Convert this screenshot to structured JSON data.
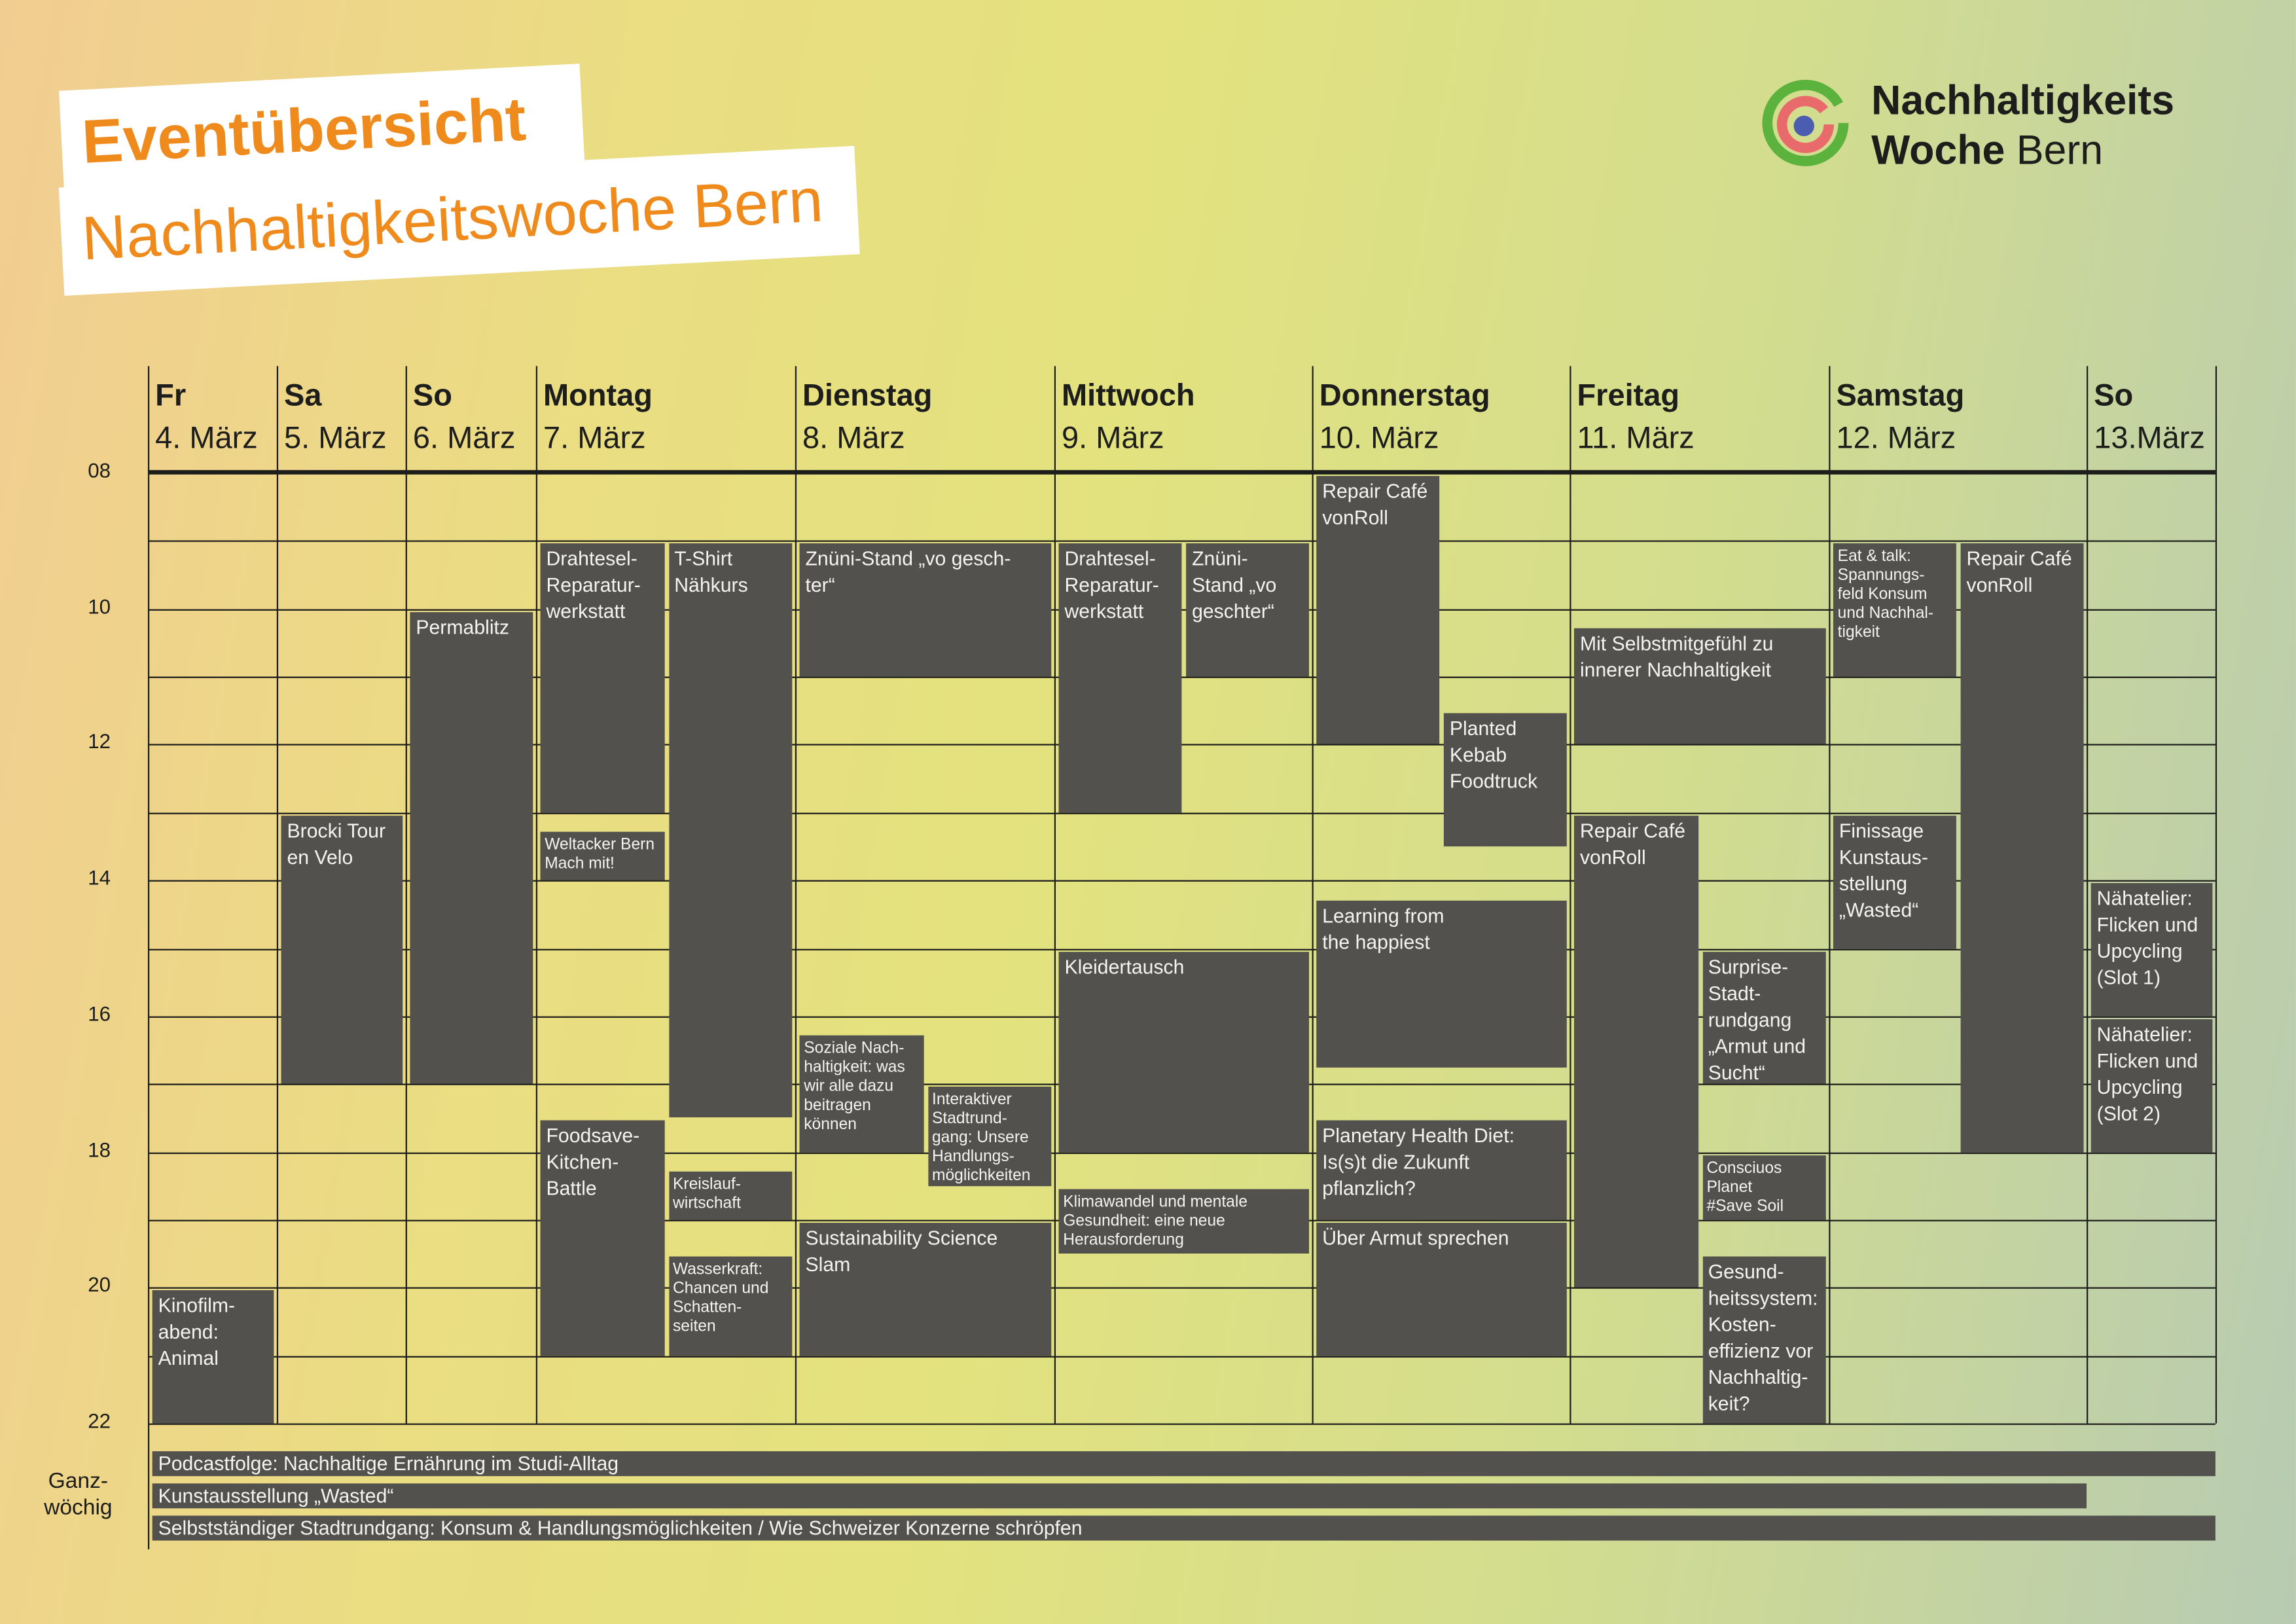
{
  "title": {
    "line1": "Eventübersicht",
    "line2": "Nachhaltigkeitswoche Bern"
  },
  "logo": {
    "bold1": "Nachhaltigkeits",
    "bold2": "Woche",
    "regular": "Bern"
  },
  "colors": {
    "accent": "#ef8a1c",
    "event_bg": "#52514d",
    "text": "#1d1d1b"
  },
  "hours": [
    "08",
    "10",
    "12",
    "14",
    "16",
    "18",
    "20",
    "22"
  ],
  "days": [
    {
      "name": "Fr",
      "date": "4. März"
    },
    {
      "name": "Sa",
      "date": "5. März"
    },
    {
      "name": "So",
      "date": "6. März"
    },
    {
      "name": "Montag",
      "date": "7. März"
    },
    {
      "name": "Dienstag",
      "date": "8. März"
    },
    {
      "name": "Mittwoch",
      "date": "9. März"
    },
    {
      "name": "Donnerstag",
      "date": "10. März"
    },
    {
      "name": "Freitag",
      "date": "11. März"
    },
    {
      "name": "Samstag",
      "date": "12. März"
    },
    {
      "name": "So",
      "date": "13.März"
    }
  ],
  "events": [
    {
      "day": 0,
      "start": 20,
      "end": 22,
      "lane": "full",
      "title": "Kinofilm-\nabend:\nAnimal"
    },
    {
      "day": 1,
      "start": 13,
      "end": 17,
      "lane": "full",
      "title": "Brocki Tour\nen Velo"
    },
    {
      "day": 2,
      "start": 10,
      "end": 17,
      "lane": "full",
      "title": "Permablitz"
    },
    {
      "day": 3,
      "start": 9,
      "end": 13,
      "lane": "left",
      "title": "Drahtesel-\nReparatur-\nwerkstatt"
    },
    {
      "day": 3,
      "start": 13.25,
      "end": 14,
      "lane": "left",
      "title": "Weltacker Bern\nMach mit!",
      "small": true
    },
    {
      "day": 3,
      "start": 9,
      "end": 17.5,
      "lane": "right",
      "title": "T-Shirt\nNähkurs"
    },
    {
      "day": 3,
      "start": 17.5,
      "end": 21,
      "lane": "left",
      "title": "Foodsave-\nKitchen-\nBattle"
    },
    {
      "day": 3,
      "start": 18.25,
      "end": 19,
      "lane": "right",
      "title": "Kreislauf-\nwirtschaft",
      "small": true
    },
    {
      "day": 3,
      "start": 19.5,
      "end": 21,
      "lane": "right",
      "title": "Wasserkraft:\nChancen und\nSchatten-\nseiten",
      "small": true
    },
    {
      "day": 4,
      "start": 9,
      "end": 11,
      "lane": "full",
      "title": "Znüni-Stand „vo gesch-\nter“"
    },
    {
      "day": 4,
      "start": 16.25,
      "end": 18,
      "lane": "left",
      "title": "Soziale Nach-\nhaltigkeit: was\nwir alle dazu\nbeitragen\nkönnen",
      "small": true
    },
    {
      "day": 4,
      "start": 17,
      "end": 18.5,
      "lane": "right",
      "title": "Interaktiver\nStadtrund-\ngang: Unsere\nHandlungs-\nmöglichkeiten",
      "small": true
    },
    {
      "day": 4,
      "start": 19,
      "end": 21,
      "lane": "full",
      "title": "Sustainability Science\nSlam"
    },
    {
      "day": 5,
      "start": 9,
      "end": 13,
      "lane": "left",
      "title": "Drahtesel-\nReparatur-\nwerkstatt"
    },
    {
      "day": 5,
      "start": 9,
      "end": 11,
      "lane": "right",
      "title": "Znüni-\nStand „vo\ngeschter“"
    },
    {
      "day": 5,
      "start": 15,
      "end": 18,
      "lane": "full",
      "title": "Kleidertausch"
    },
    {
      "day": 5,
      "start": 18.5,
      "end": 19.5,
      "lane": "full",
      "title": "Klimawandel und mentale\nGesundheit: eine neue\nHerausforderung",
      "small": true
    },
    {
      "day": 6,
      "start": 8,
      "end": 12,
      "lane": "left",
      "title": "Repair Café\nvonRoll"
    },
    {
      "day": 6,
      "start": 11.5,
      "end": 13.5,
      "lane": "right",
      "title": "Planted\nKebab\nFoodtruck"
    },
    {
      "day": 6,
      "start": 14.25,
      "end": 16.75,
      "lane": "full",
      "title": "Learning from\nthe happiest"
    },
    {
      "day": 6,
      "start": 17.5,
      "end": 19,
      "lane": "full",
      "title": "Planetary Health Diet:\nIs(s)t die Zukunft\npflanzlich?"
    },
    {
      "day": 6,
      "start": 19,
      "end": 21,
      "lane": "full",
      "title": "Über Armut sprechen"
    },
    {
      "day": 7,
      "start": 10.25,
      "end": 12,
      "lane": "full",
      "title": "Mit Selbstmitgefühl zu\ninnerer Nachhaltigkeit"
    },
    {
      "day": 7,
      "start": 13,
      "end": 20,
      "lane": "left",
      "title": "Repair Café\nvonRoll"
    },
    {
      "day": 7,
      "start": 15,
      "end": 17,
      "lane": "right",
      "title": "Surprise-\nStadt-\nrundgang\n„Armut und\nSucht“"
    },
    {
      "day": 7,
      "start": 18,
      "end": 19,
      "lane": "right",
      "title": "Consciuos\nPlanet\n#Save Soil",
      "small": true
    },
    {
      "day": 7,
      "start": 19.5,
      "end": 22,
      "lane": "right",
      "title": "Gesund-\nheitssystem:\nKosten-\neffizienz vor\nNachhaltig-\nkeit?"
    },
    {
      "day": 8,
      "start": 9,
      "end": 11,
      "lane": "left",
      "title": "Eat & talk:\nSpannungs-\nfeld Konsum\nund Nachhal-\ntigkeit",
      "small": true
    },
    {
      "day": 8,
      "start": 9,
      "end": 18,
      "lane": "right",
      "title": "Repair Café\nvonRoll"
    },
    {
      "day": 8,
      "start": 13,
      "end": 15,
      "lane": "left",
      "title": "Finissage\nKunstaus-\nstellung\n„Wasted“"
    },
    {
      "day": 9,
      "start": 14,
      "end": 16,
      "lane": "full",
      "title": "Nähatelier:\nFlicken und\nUpcycling\n(Slot 1)"
    },
    {
      "day": 9,
      "start": 16,
      "end": 18,
      "lane": "full",
      "title": "Nähatelier:\nFlicken und\nUpcycling\n(Slot 2)"
    }
  ],
  "weekly": {
    "label": "Ganz-\nwöchig",
    "items": [
      {
        "title": "Podcastfolge: Nachhaltige Ernährung im Studi-Alltag",
        "until_day": 9
      },
      {
        "title": "Kunstausstellung „Wasted“",
        "until_day": 8
      },
      {
        "title": "Selbstständiger Stadtrundgang: Konsum & Handlungsmöglichkeiten / Wie Schweizer Konzerne schröpfen",
        "until_day": 9
      }
    ]
  }
}
